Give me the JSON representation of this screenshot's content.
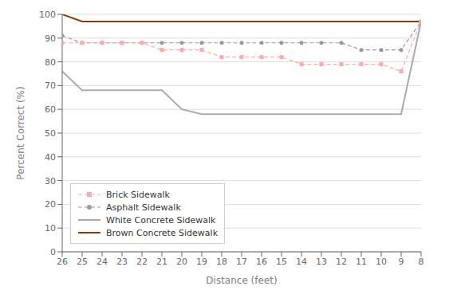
{
  "chart_data": {
    "type": "line",
    "x": [
      26,
      25,
      24,
      23,
      22,
      21,
      20,
      19,
      18,
      17,
      16,
      15,
      14,
      13,
      12,
      11,
      10,
      9,
      8
    ],
    "xlabel": "Distance (feet)",
    "ylabel": "Percent Correct (%)",
    "xlim": [
      26,
      8
    ],
    "xticks": [
      26,
      25,
      24,
      23,
      22,
      21,
      20,
      19,
      18,
      17,
      16,
      15,
      14,
      13,
      12,
      11,
      10,
      9,
      8
    ],
    "ylim": [
      0,
      100
    ],
    "yticks": [
      0,
      10,
      20,
      30,
      40,
      50,
      60,
      70,
      80,
      90,
      100
    ],
    "grid": "y",
    "legend": "lower left",
    "series": [
      {
        "name": "Brick Sidewalk",
        "color": "#ffaaaa",
        "marker": "square",
        "line_style": "dashed",
        "values": [
          88,
          88,
          88,
          88,
          88,
          85,
          85,
          85,
          82,
          82,
          82,
          82,
          79,
          79,
          79,
          79,
          79,
          76,
          97
        ]
      },
      {
        "name": "Asphalt Sidewalk",
        "color": "#999999",
        "marker": "circle",
        "line_style": "dashed",
        "values": [
          91,
          88,
          88,
          88,
          88,
          88,
          88,
          88,
          88,
          88,
          88,
          88,
          88,
          88,
          88,
          85,
          85,
          85,
          97
        ]
      },
      {
        "name": "White Concrete Sidewalk",
        "color": "#aaaaaa",
        "marker": "none",
        "line_style": "solid",
        "values": [
          76,
          68,
          68,
          68,
          68,
          68,
          60,
          58,
          58,
          58,
          58,
          58,
          58,
          58,
          58,
          58,
          58,
          58,
          97
        ]
      },
      {
        "name": "Brown Concrete Sidewalk",
        "color": "#8B3A0F",
        "marker": "none",
        "line_style": "solid",
        "values": [
          100,
          97,
          97,
          97,
          97,
          97,
          97,
          97,
          97,
          97,
          97,
          97,
          97,
          97,
          97,
          97,
          97,
          97,
          97
        ]
      }
    ]
  }
}
